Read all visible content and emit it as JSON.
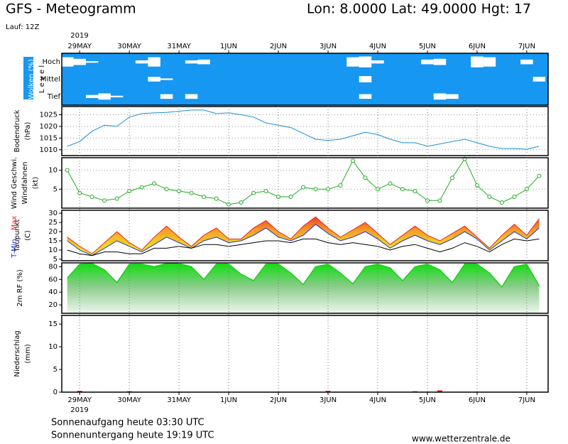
{
  "header": {
    "title": "GFS - Meteogramm",
    "location": "Lon: 8.0000  Lat: 49.0000  Hgt: 17",
    "run": "Lauf: 12Z",
    "year": "2019"
  },
  "footer": {
    "sunrise": "Sonnenaufgang heute 03:30 UTC",
    "sunset": "Sonnenuntergang heute 19:19 UTC",
    "source": "www.wetterzentrale.de"
  },
  "chart_data": [
    {
      "type": "cloud",
      "ylabels": [
        "Wolken (%)",
        "L e v e l"
      ],
      "x": [
        -0.25,
        0,
        0.25,
        0.5,
        0.75,
        1,
        1.25,
        1.5,
        1.75,
        2,
        2.25,
        2.5,
        2.75,
        3,
        3.25,
        3.5,
        3.75,
        4,
        4.25,
        4.5,
        4.75,
        5,
        5.25,
        5.5,
        5.75,
        6,
        6.25,
        6.5,
        6.75,
        7,
        7.25,
        7.5,
        7.75,
        8,
        8.25,
        8.5,
        8.75,
        9,
        9.25
      ],
      "xlim": [
        -0.36,
        9.43
      ],
      "xticks": [
        {
          "value": 0,
          "label": "29MAY"
        },
        {
          "value": 1,
          "label": "30MAY"
        },
        {
          "value": 2,
          "label": "31MAY"
        },
        {
          "value": 3,
          "label": "1JUN"
        },
        {
          "value": 4,
          "label": "2JUN"
        },
        {
          "value": 5,
          "label": "3JUN"
        },
        {
          "value": 6,
          "label": "4JUN"
        },
        {
          "value": 7,
          "label": "5JUN"
        },
        {
          "value": 8,
          "label": "6JUN"
        },
        {
          "value": 9,
          "label": "7JUN"
        }
      ],
      "background": "#1597f2",
      "series": [
        {
          "name": "Hoch",
          "color": "#ffffff",
          "values": [
            60,
            40,
            10,
            0,
            0,
            0,
            20,
            60,
            0,
            0,
            20,
            30,
            0,
            0,
            0,
            0,
            0,
            0,
            0,
            0,
            0,
            0,
            0,
            60,
            70,
            20,
            0,
            0,
            0,
            30,
            40,
            0,
            0,
            70,
            60,
            0,
            0,
            30,
            0
          ]
        },
        {
          "name": "Mittel",
          "color": "#ffffff",
          "values": [
            0,
            0,
            0,
            0,
            0,
            0,
            0,
            30,
            10,
            0,
            0,
            0,
            0,
            0,
            0,
            0,
            0,
            0,
            0,
            0,
            0,
            0,
            0,
            0,
            40,
            0,
            0,
            0,
            0,
            0,
            0,
            0,
            0,
            0,
            0,
            0,
            0,
            0,
            30
          ]
        },
        {
          "name": "Tief",
          "color": "#ffffff",
          "values": [
            0,
            0,
            20,
            40,
            10,
            0,
            0,
            0,
            30,
            0,
            30,
            0,
            0,
            0,
            0,
            0,
            0,
            0,
            0,
            0,
            0,
            0,
            0,
            0,
            30,
            0,
            0,
            0,
            0,
            0,
            40,
            30,
            0,
            0,
            0,
            0,
            0,
            0,
            0
          ]
        }
      ]
    },
    {
      "type": "line",
      "ylabels": [
        "Bodendruck",
        "(hPa)"
      ],
      "x": [
        -0.25,
        0,
        0.25,
        0.5,
        0.75,
        1,
        1.25,
        1.5,
        1.75,
        2,
        2.25,
        2.5,
        2.75,
        3,
        3.25,
        3.5,
        3.75,
        4,
        4.25,
        4.5,
        4.75,
        5,
        5.25,
        5.5,
        5.75,
        6,
        6.25,
        6.5,
        6.75,
        7,
        7.25,
        7.5,
        7.75,
        8,
        8.25,
        8.5,
        8.75,
        9,
        9.25
      ],
      "xlim": [
        -0.36,
        9.43
      ],
      "ylim": [
        1007.5,
        1028.5
      ],
      "yticks": [
        1010,
        1015,
        1020,
        1025
      ],
      "grid": true,
      "series": [
        {
          "color": "#1a8fd8",
          "values": [
            1011.5,
            1013.5,
            1018,
            1020.5,
            1020,
            1024,
            1025.5,
            1025.8,
            1026,
            1026.5,
            1027,
            1027,
            1025.5,
            1025.8,
            1025,
            1024,
            1021.5,
            1020.5,
            1019.5,
            1017,
            1014.5,
            1014,
            1014.5,
            1016,
            1017.5,
            1016.5,
            1014.5,
            1013,
            1013,
            1011.5,
            1012.5,
            1013.5,
            1014.5,
            1013,
            1011.5,
            1010.5,
            1010.5,
            1010.2,
            1011.5
          ]
        }
      ]
    },
    {
      "type": "line",
      "ylabels": [
        "Wind Geschwi.",
        "Windfahnen",
        "(kt)"
      ],
      "x": [
        -0.25,
        0,
        0.25,
        0.5,
        0.75,
        1,
        1.25,
        1.5,
        1.75,
        2,
        2.25,
        2.5,
        2.75,
        3,
        3.25,
        3.5,
        3.75,
        4,
        4.25,
        4.5,
        4.75,
        5,
        5.25,
        5.5,
        5.75,
        6,
        6.25,
        6.5,
        6.75,
        7,
        7.25,
        7.5,
        7.75,
        8,
        8.25,
        8.5,
        8.75,
        9,
        9.25
      ],
      "xlim": [
        -0.36,
        9.43
      ],
      "ylim": [
        0,
        13.3
      ],
      "yticks": [
        5,
        10
      ],
      "grid": true,
      "markers": true,
      "series": [
        {
          "name": "Wind Geschwi.",
          "color": "#22aa22",
          "values": [
            10,
            4,
            3,
            2,
            2.5,
            4.5,
            5.5,
            6.5,
            5,
            4.5,
            4,
            3,
            2.5,
            1,
            1.5,
            4,
            4.5,
            3,
            3,
            5.5,
            5,
            5,
            6,
            12.5,
            8,
            5,
            6.5,
            5,
            4.5,
            2,
            2,
            8,
            13,
            6,
            3,
            1.5,
            3,
            5,
            8.5
          ]
        }
      ]
    },
    {
      "type": "line",
      "ylabels": [
        "Taupunkt",
        "(C)"
      ],
      "fill_between": true,
      "x": [
        -0.25,
        0,
        0.25,
        0.5,
        0.75,
        1,
        1.25,
        1.5,
        1.75,
        2,
        2.25,
        2.5,
        2.75,
        3,
        3.25,
        3.5,
        3.75,
        4,
        4.25,
        4.5,
        4.75,
        5,
        5.25,
        5.5,
        5.75,
        6,
        6.25,
        6.5,
        6.75,
        7,
        7.25,
        7.5,
        7.75,
        8,
        8.25,
        8.5,
        8.75,
        9,
        9.25
      ],
      "xlim": [
        -0.36,
        9.43
      ],
      "ylim": [
        4.2,
        31.6
      ],
      "yticks": [
        5,
        10,
        15,
        20,
        25,
        30
      ],
      "grid": false,
      "series": [
        {
          "name": "T-Min,",
          "color": "#2233cc",
          "values": [
            15,
            10,
            7,
            11,
            15,
            12,
            9,
            13,
            17,
            14,
            11,
            15,
            17,
            14,
            15,
            18,
            22,
            17,
            15,
            18,
            24,
            19,
            15,
            17,
            20,
            16,
            11,
            15,
            18,
            15,
            13,
            16,
            20,
            16,
            10,
            15,
            20,
            16,
            22
          ]
        },
        {
          "name": "Max",
          "color": "#ee2222",
          "values": [
            17,
            12,
            8,
            14,
            20,
            14,
            10,
            17,
            23,
            17,
            12,
            18,
            22,
            16,
            16,
            22,
            26,
            20,
            16,
            23,
            28,
            22,
            17,
            21,
            25,
            19,
            13,
            18,
            23,
            18,
            15,
            19,
            23,
            17,
            11,
            18,
            24,
            18,
            27
          ]
        },
        {
          "name": "Taupunkt",
          "color": "#000000",
          "values": [
            10,
            8,
            7,
            9,
            9,
            8,
            8,
            11,
            11,
            12,
            11,
            13,
            13,
            12,
            13,
            14,
            15,
            15,
            14,
            16,
            16,
            14,
            13,
            14,
            13,
            12,
            10,
            12,
            13,
            11,
            9,
            11,
            14,
            12,
            9,
            13,
            16,
            15,
            16
          ]
        }
      ]
    },
    {
      "type": "area",
      "ylabels": [
        "2m RF (%)"
      ],
      "x": [
        -0.25,
        0,
        0.25,
        0.5,
        0.75,
        1,
        1.25,
        1.5,
        1.75,
        2,
        2.25,
        2.5,
        2.75,
        3,
        3.25,
        3.5,
        3.75,
        4,
        4.25,
        4.5,
        4.75,
        5,
        5.25,
        5.5,
        5.75,
        6,
        6.25,
        6.5,
        6.75,
        7,
        7.25,
        7.5,
        7.75,
        8,
        8.25,
        8.5,
        8.75,
        9,
        9.25
      ],
      "xlim": [
        -0.36,
        9.43
      ],
      "ylim": [
        6.8,
        86
      ],
      "yticks": [
        20,
        40,
        60,
        80
      ],
      "grid": false,
      "series": [
        {
          "name": "2m RF (%)",
          "color": "#22cc22",
          "values": [
            62,
            84,
            85,
            75,
            55,
            84,
            84,
            80,
            85,
            85,
            80,
            60,
            84,
            84,
            68,
            58,
            84,
            84,
            70,
            52,
            80,
            84,
            70,
            53,
            80,
            84,
            78,
            58,
            80,
            84,
            75,
            55,
            84,
            84,
            70,
            48,
            80,
            84,
            50
          ]
        }
      ]
    },
    {
      "type": "bar",
      "ylabels": [
        "Niederschlag",
        "(mm)"
      ],
      "x": [
        -0.25,
        0,
        0.25,
        0.5,
        0.75,
        1,
        1.25,
        1.5,
        1.75,
        2,
        2.25,
        2.5,
        2.75,
        3,
        3.25,
        3.5,
        3.75,
        4,
        4.25,
        4.5,
        4.75,
        5,
        5.25,
        5.5,
        5.75,
        6,
        6.25,
        6.5,
        6.75,
        7,
        7.25,
        7.5,
        7.75,
        8,
        8.25,
        8.5,
        8.75,
        9,
        9.25
      ],
      "xlim": [
        -0.36,
        9.43
      ],
      "ylim": [
        0,
        16.9
      ],
      "yticks": [
        0,
        5,
        10,
        15
      ],
      "grid": false,
      "xticks": [
        {
          "value": 0,
          "label": "29MAY"
        },
        {
          "value": 1,
          "label": "30MAY"
        },
        {
          "value": 2,
          "label": "31MAY"
        },
        {
          "value": 3,
          "label": "1JUN"
        },
        {
          "value": 4,
          "label": "2JUN"
        },
        {
          "value": 5,
          "label": "3JUN"
        },
        {
          "value": 6,
          "label": "4JUN"
        },
        {
          "value": 7,
          "label": "5JUN"
        },
        {
          "value": 8,
          "label": "6JUN"
        },
        {
          "value": 9,
          "label": "7JUN"
        }
      ],
      "series": [
        {
          "color": "#ee2222",
          "values": [
            0,
            0.3,
            0,
            0,
            0,
            0.2,
            0,
            0,
            0,
            0,
            0,
            0,
            0,
            0,
            0,
            0,
            0,
            0,
            0,
            0,
            0,
            0.3,
            0,
            0,
            0,
            0,
            0,
            0,
            0.2,
            0,
            0.4,
            0,
            0,
            0,
            0,
            0,
            0,
            0,
            0
          ]
        }
      ]
    }
  ]
}
